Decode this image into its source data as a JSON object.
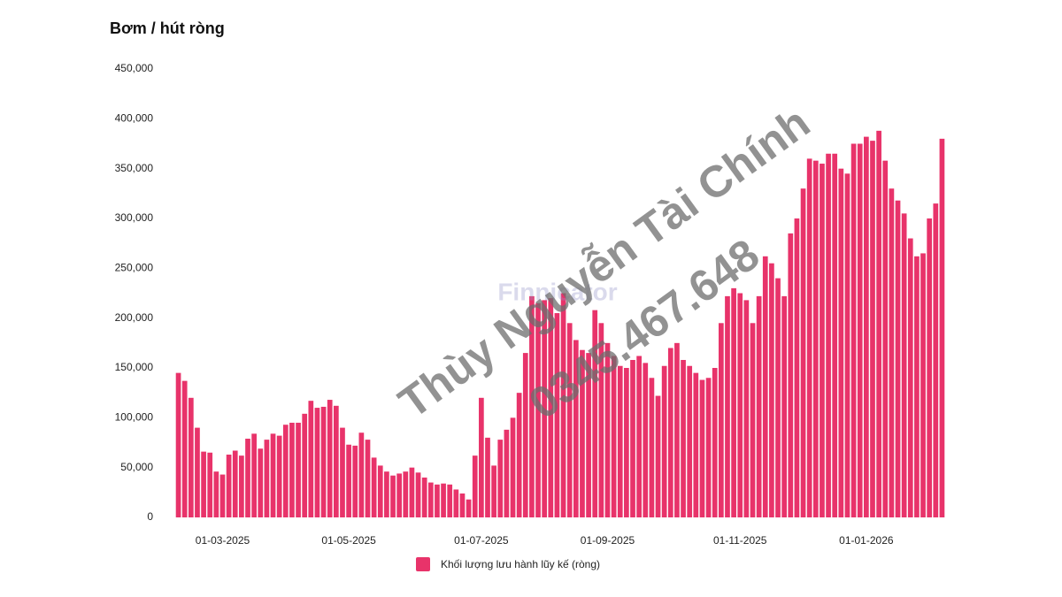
{
  "chart_data": {
    "type": "bar",
    "title": "Bơm / hút ròng",
    "categories": [
      null,
      null,
      null,
      null,
      null,
      null,
      null,
      "01-03-2025",
      null,
      null,
      null,
      null,
      null,
      null,
      null,
      null,
      null,
      null,
      null,
      null,
      null,
      null,
      null,
      null,
      null,
      null,
      null,
      "01-05-2025",
      null,
      null,
      null,
      null,
      null,
      null,
      null,
      null,
      null,
      null,
      null,
      null,
      null,
      null,
      null,
      null,
      null,
      null,
      null,
      null,
      "01-07-2025",
      null,
      null,
      null,
      null,
      null,
      null,
      null,
      null,
      null,
      null,
      null,
      null,
      null,
      null,
      null,
      null,
      null,
      null,
      null,
      "01-09-2025",
      null,
      null,
      null,
      null,
      null,
      null,
      null,
      null,
      null,
      null,
      null,
      null,
      null,
      null,
      null,
      null,
      null,
      null,
      null,
      null,
      "01-11-2025",
      null,
      null,
      null,
      null,
      null,
      null,
      null,
      null,
      null,
      null,
      null,
      null,
      null,
      null,
      null,
      null,
      null,
      null,
      null,
      "01-01-2026",
      null,
      null,
      null,
      null,
      null,
      null,
      null,
      null,
      null,
      null,
      null,
      null
    ],
    "series": [
      {
        "name": "Khối lượng lưu hành lũy kế (ròng)",
        "color": "#e8336a",
        "values": [
          145000,
          137000,
          120000,
          90000,
          66000,
          65000,
          46000,
          43000,
          63000,
          67000,
          62000,
          79000,
          84000,
          69000,
          78000,
          84000,
          82000,
          93000,
          95000,
          95000,
          104000,
          117000,
          110000,
          111000,
          118000,
          112000,
          90000,
          73000,
          72000,
          85000,
          78000,
          60000,
          52000,
          46000,
          42000,
          44000,
          46000,
          50000,
          45000,
          40000,
          35000,
          33000,
          34000,
          33000,
          28000,
          24000,
          18000,
          62000,
          120000,
          80000,
          52000,
          78000,
          88000,
          100000,
          125000,
          165000,
          222000,
          215000,
          218000,
          220000,
          205000,
          225000,
          195000,
          178000,
          168000,
          165000,
          208000,
          195000,
          175000,
          162000,
          152000,
          150000,
          158000,
          162000,
          155000,
          140000,
          122000,
          152000,
          170000,
          175000,
          158000,
          152000,
          145000,
          138000,
          140000,
          150000,
          195000,
          222000,
          230000,
          225000,
          218000,
          195000,
          222000,
          262000,
          255000,
          240000,
          222000,
          285000,
          300000,
          330000,
          360000,
          358000,
          355000,
          365000,
          365000,
          350000,
          345000,
          375000,
          375000,
          382000,
          378000,
          388000,
          358000,
          330000,
          318000,
          305000,
          280000,
          262000,
          265000,
          300000,
          315000,
          380000
        ]
      }
    ],
    "ylim": [
      0,
      450000
    ],
    "yticks": [
      0,
      {
        "value": 50000,
        "label": "50,000"
      },
      {
        "value": 100000,
        "label": "100,000"
      },
      {
        "value": 150000,
        "label": "150,000"
      },
      {
        "value": 200000,
        "label": "200,000"
      },
      {
        "value": 250000,
        "label": "250,000"
      },
      {
        "value": 300000,
        "label": "300,000"
      },
      {
        "value": 350000,
        "label": "350,000"
      },
      {
        "value": 400000,
        "label": "400,000"
      },
      {
        "value": 450000,
        "label": "450,000"
      }
    ],
    "grid": false,
    "legend": "bottom",
    "annotations": [
      "Thùy Nguyễn Tài Chính",
      "0345.467.648",
      "Finnicator"
    ]
  }
}
